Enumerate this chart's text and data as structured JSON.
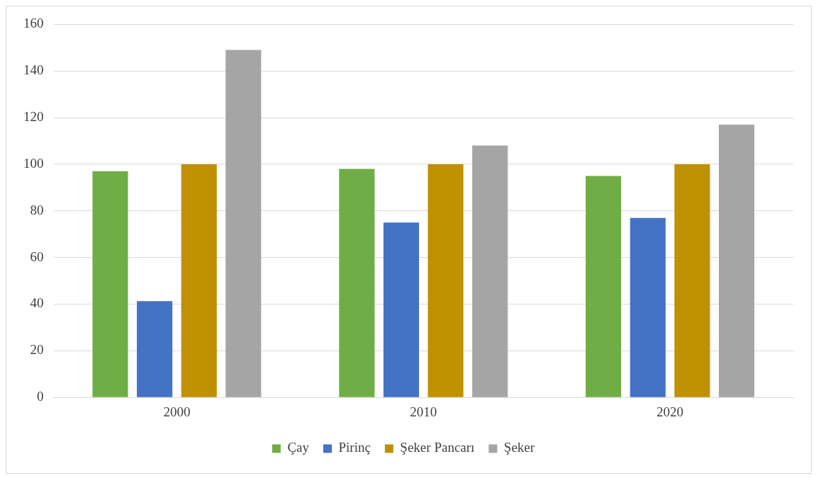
{
  "chart_data": {
    "type": "bar",
    "categories": [
      "2000",
      "2010",
      "2020"
    ],
    "series": [
      {
        "name": "Çay",
        "color": "#70ad47",
        "values": [
          97,
          98,
          95
        ]
      },
      {
        "name": "Pirinç",
        "color": "#4472c4",
        "values": [
          41.3,
          75,
          77
        ]
      },
      {
        "name": "Şeker Pancarı",
        "color": "#bf9000",
        "values": [
          100,
          100,
          100
        ]
      },
      {
        "name": "Şeker",
        "color": "#a5a5a5",
        "values": [
          149,
          108,
          117
        ]
      }
    ],
    "ylim": [
      0,
      160
    ],
    "yticks": [
      0,
      20,
      40,
      60,
      80,
      100,
      120,
      140,
      160
    ],
    "grid": "y",
    "legend": "bottom"
  }
}
